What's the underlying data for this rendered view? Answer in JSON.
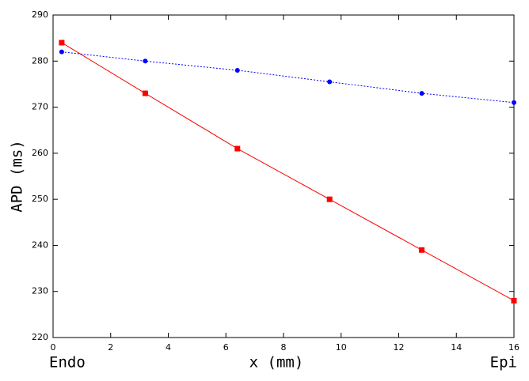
{
  "chart_data": {
    "type": "line",
    "xlabel": "x (mm)",
    "ylabel": "APD (ms)",
    "annotations": [
      "Endo",
      "Epi"
    ],
    "x": [
      0.3,
      3.2,
      6.4,
      9.6,
      12.8,
      16
    ],
    "series": [
      {
        "color": "#ff0000",
        "line_style": "solid",
        "marker": "square",
        "values": [
          284,
          273,
          261,
          250,
          239,
          228
        ]
      },
      {
        "color": "#0000ff",
        "line_style": "dotted",
        "marker": "circle",
        "values": [
          282,
          280,
          278,
          275.5,
          273,
          271
        ]
      }
    ],
    "xlim": [
      0,
      16
    ],
    "xticks": [
      0,
      2,
      4,
      6,
      8,
      10,
      12,
      14,
      16
    ],
    "ylim": [
      220,
      290
    ],
    "yticks": [
      220,
      230,
      240,
      250,
      260,
      270,
      280,
      290
    ],
    "grid": false
  }
}
